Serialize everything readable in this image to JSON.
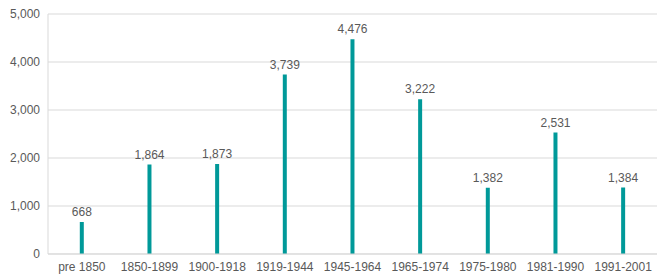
{
  "chart_data": {
    "type": "bar",
    "categories": [
      "pre 1850",
      "1850-1899",
      "1900-1918",
      "1919-1944",
      "1945-1964",
      "1965-1974",
      "1975-1980",
      "1981-1990",
      "1991-2001"
    ],
    "values": [
      668,
      1864,
      1873,
      3739,
      4476,
      3222,
      1382,
      2531,
      1384
    ],
    "value_labels": [
      "668",
      "1,864",
      "1,873",
      "3,739",
      "4,476",
      "3,222",
      "1,382",
      "2,531",
      "1,384"
    ],
    "color": "#009999",
    "ylim": [
      0,
      5000
    ],
    "yticks": [
      0,
      {
        "value": 1000,
        "label": "1,000"
      },
      {
        "value": 2000,
        "label": "2,000"
      },
      {
        "value": 3000,
        "label": "3,000"
      },
      {
        "value": 4000,
        "label": "4,000"
      },
      {
        "value": 5000,
        "label": "5,000"
      }
    ],
    "grid": true,
    "data_labels": true
  }
}
